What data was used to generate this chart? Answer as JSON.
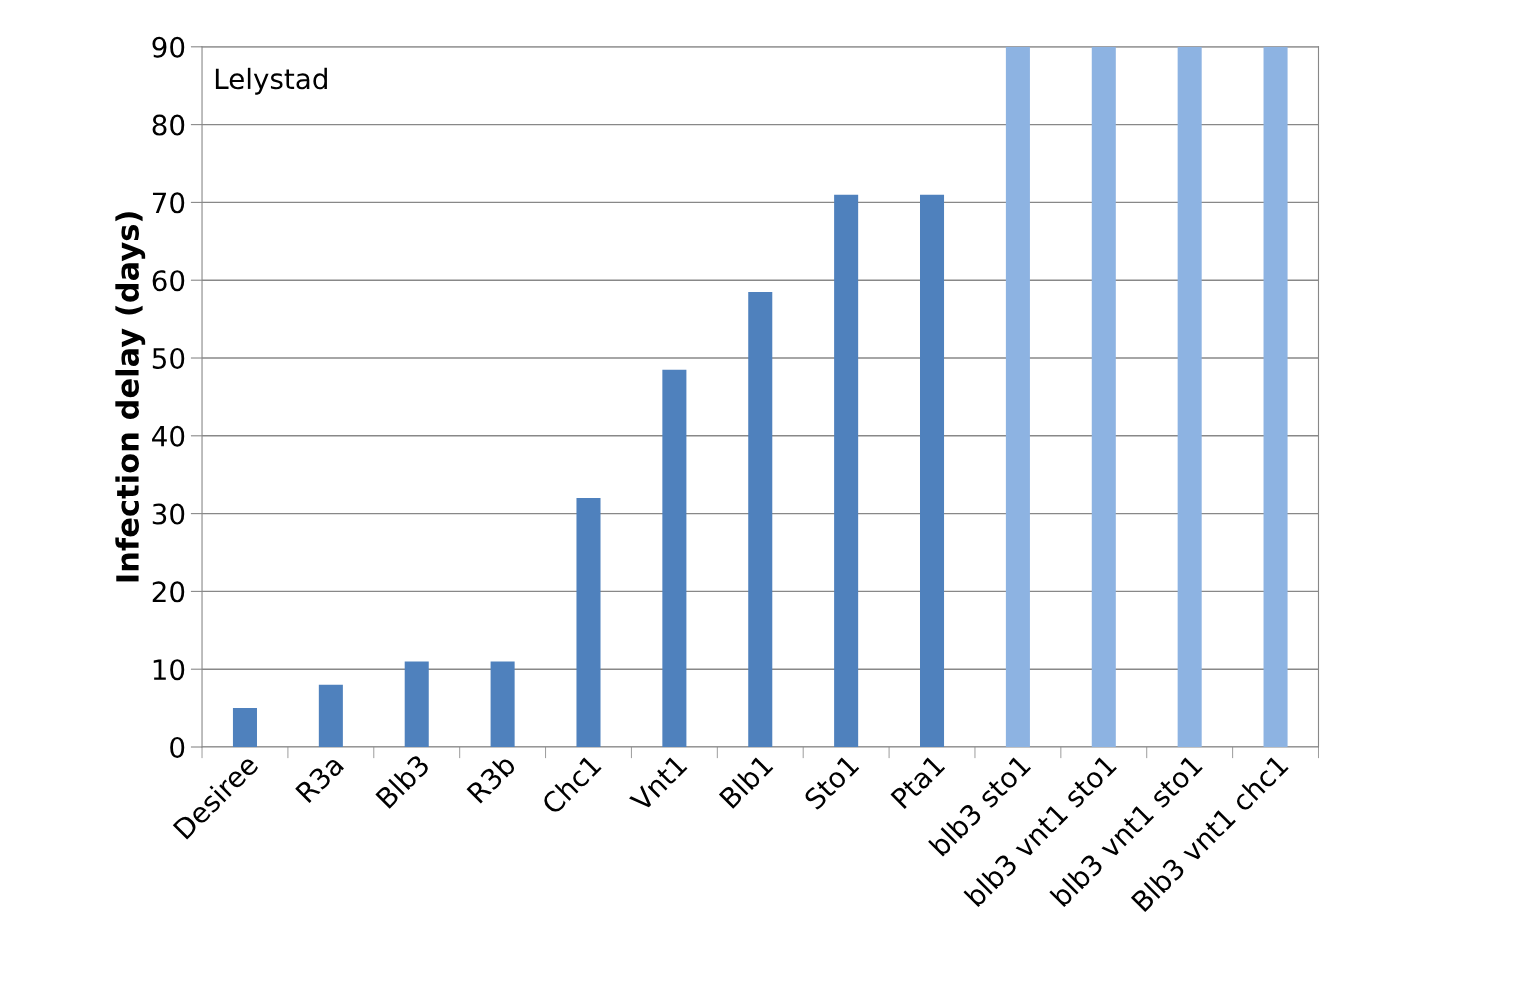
{
  "chart_data": {
    "type": "bar",
    "ylabel": "Infection delay (days)",
    "annotations": [
      "Lelystad"
    ],
    "categories": [
      "Desiree",
      "R3a",
      "Blb3",
      "R3b",
      "Chc1",
      "Vnt1",
      "Blb1",
      "Sto1",
      "Pta1",
      "blb3 sto1",
      "blb3 vnt1 sto1",
      "blb3 vnt1 sto1",
      "Blb3 vnt1 chc1"
    ],
    "values": [
      5,
      8,
      11,
      11,
      32,
      48.5,
      58.5,
      71,
      71,
      90,
      90,
      90,
      90
    ],
    "colors": [
      "#4f81bd",
      "#4f81bd",
      "#4f81bd",
      "#4f81bd",
      "#4f81bd",
      "#4f81bd",
      "#4f81bd",
      "#4f81bd",
      "#4f81bd",
      "#8db3e2",
      "#8db3e2",
      "#8db3e2",
      "#8db3e2"
    ],
    "ylim": [
      0,
      90
    ],
    "yticks": [
      0,
      10,
      20,
      30,
      40,
      50,
      60,
      70,
      80,
      90
    ],
    "grid": "y",
    "legend": false
  }
}
